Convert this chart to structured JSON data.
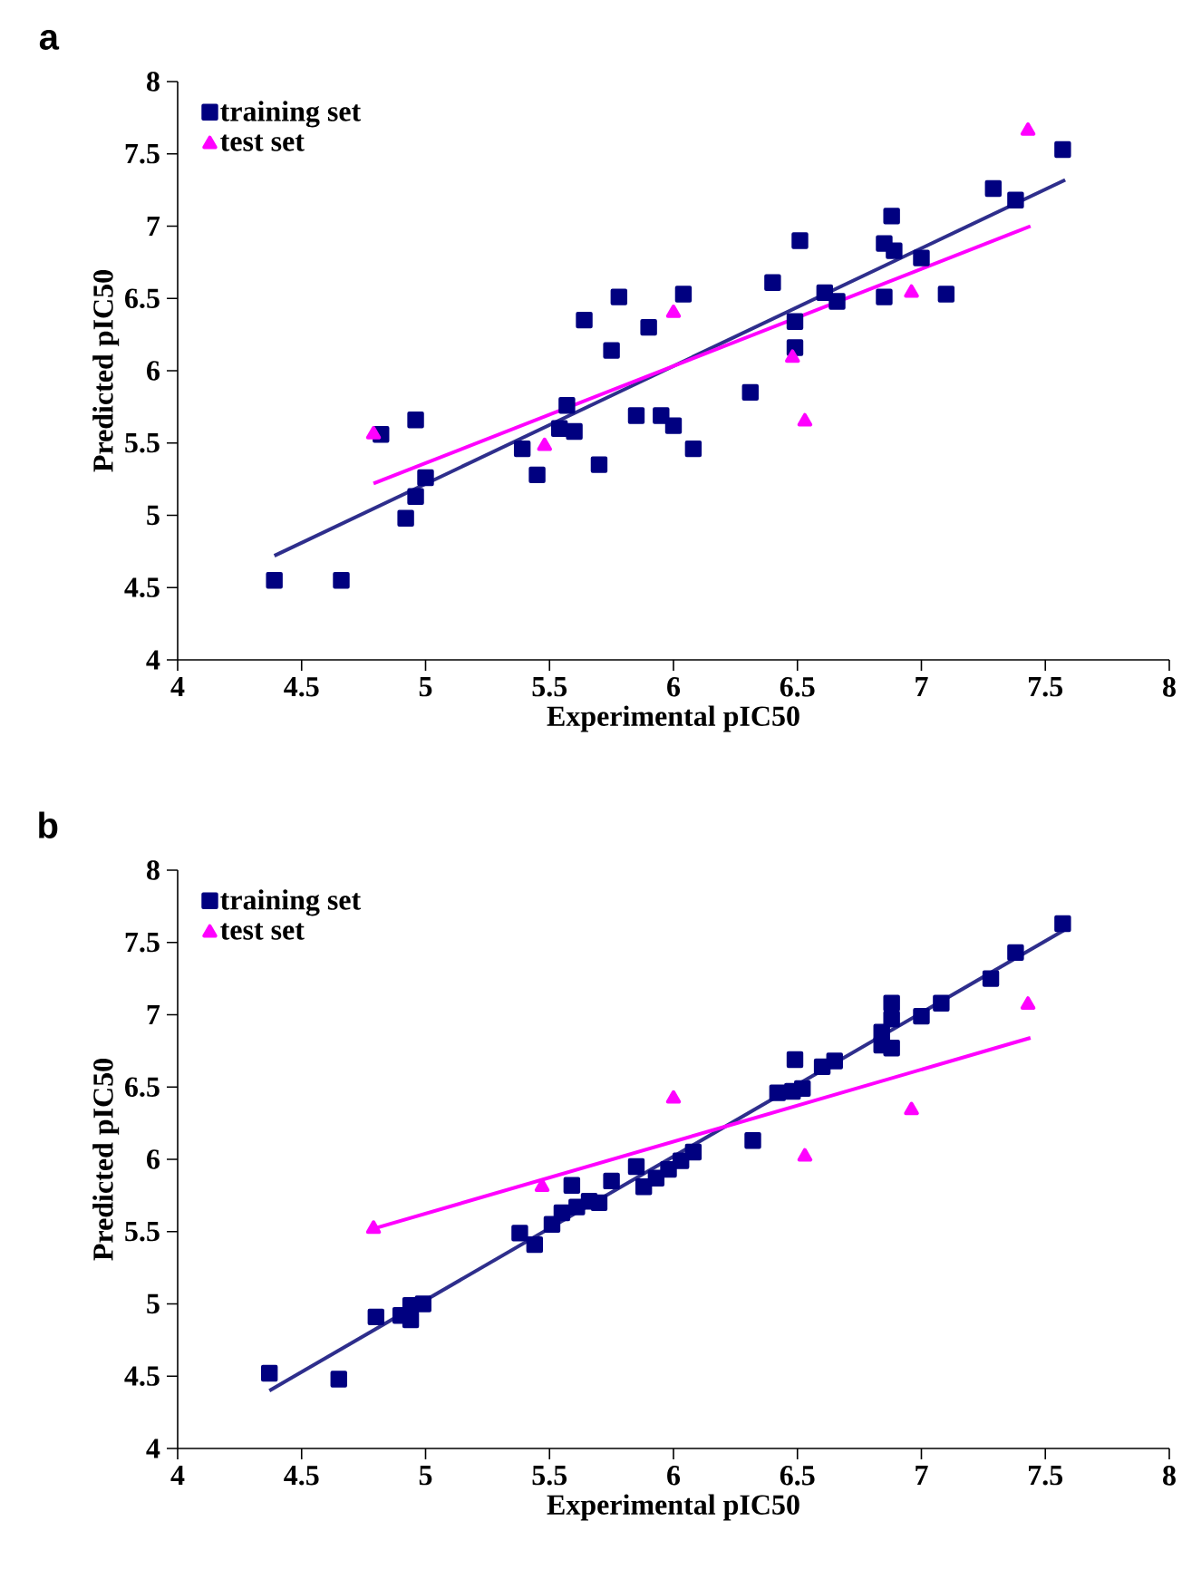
{
  "chart_data": [
    {
      "type": "scatter",
      "title": "a",
      "xlabel": "Experimental pIC50",
      "ylabel": "Predicted pIC50",
      "xlim": [
        4,
        8
      ],
      "ylim": [
        4,
        8
      ],
      "xticks": [
        4,
        4.5,
        5,
        5.5,
        6,
        6.5,
        7,
        7.5,
        8
      ],
      "yticks": [
        4,
        4.5,
        5,
        5.5,
        6,
        6.5,
        7,
        7.5,
        8
      ],
      "legend": "top left",
      "series": [
        {
          "name": "training set",
          "marker": "square",
          "color": "#000080",
          "x": [
            4.39,
            4.66,
            4.82,
            4.96,
            4.92,
            4.96,
            5.0,
            5.39,
            5.45,
            5.54,
            5.57,
            5.6,
            5.64,
            5.7,
            5.75,
            5.78,
            5.85,
            5.9,
            5.95,
            6.0,
            6.04,
            6.08,
            6.31,
            6.4,
            6.49,
            6.49,
            6.51,
            6.61,
            6.66,
            6.85,
            6.85,
            6.88,
            6.89,
            7.0,
            7.1,
            7.29,
            7.38,
            7.57
          ],
          "values": [
            4.55,
            4.55,
            5.56,
            5.66,
            4.98,
            5.13,
            5.26,
            5.46,
            5.28,
            5.6,
            5.76,
            5.58,
            6.35,
            5.35,
            6.14,
            6.51,
            5.69,
            6.3,
            5.69,
            5.62,
            6.53,
            5.46,
            5.85,
            6.61,
            6.16,
            6.34,
            6.9,
            6.54,
            6.48,
            6.51,
            6.88,
            7.07,
            6.83,
            6.78,
            6.53,
            7.26,
            7.18,
            7.53
          ]
        },
        {
          "name": "test set",
          "marker": "triangle",
          "color": "#ff00ff",
          "x": [
            4.79,
            5.48,
            6.0,
            6.48,
            6.53,
            6.96,
            7.43
          ],
          "values": [
            5.56,
            5.48,
            6.4,
            6.09,
            5.65,
            6.54,
            7.66
          ]
        },
        {
          "type": "line",
          "marker": "none",
          "color": "#2e2e8c",
          "x": [
            4.39,
            7.58
          ],
          "values": [
            4.72,
            7.32
          ]
        },
        {
          "type": "line",
          "marker": "none",
          "color": "#ff00ff",
          "x": [
            4.79,
            7.44
          ],
          "values": [
            5.22,
            7.0
          ]
        }
      ]
    },
    {
      "type": "scatter",
      "title": "b",
      "xlabel": "Experimental pIC50",
      "ylabel": "Predicted pIC50",
      "xlim": [
        4,
        8
      ],
      "ylim": [
        4,
        8
      ],
      "xticks": [
        4,
        4.5,
        5,
        5.5,
        6,
        6.5,
        7,
        7.5,
        8
      ],
      "yticks": [
        4,
        4.5,
        5,
        5.5,
        6,
        6.5,
        7,
        7.5,
        8
      ],
      "legend": "top left",
      "series": [
        {
          "name": "training set",
          "marker": "square",
          "color": "#000080",
          "x": [
            4.37,
            4.65,
            4.8,
            4.9,
            4.94,
            4.94,
            4.99,
            5.38,
            5.44,
            5.51,
            5.55,
            5.59,
            5.61,
            5.66,
            5.7,
            5.75,
            5.85,
            5.88,
            5.93,
            5.98,
            6.03,
            6.08,
            6.32,
            6.42,
            6.48,
            6.52,
            6.49,
            6.6,
            6.65,
            6.84,
            6.84,
            6.88,
            6.88,
            6.88,
            7.0,
            7.08,
            7.28,
            7.38,
            7.57
          ],
          "values": [
            4.52,
            4.48,
            4.91,
            4.92,
            4.89,
            4.99,
            5.0,
            5.49,
            5.41,
            5.55,
            5.63,
            5.82,
            5.67,
            5.71,
            5.7,
            5.85,
            5.95,
            5.81,
            5.87,
            5.93,
            5.99,
            6.05,
            6.13,
            6.46,
            6.47,
            6.49,
            6.69,
            6.64,
            6.68,
            6.88,
            6.79,
            6.77,
            7.08,
            6.97,
            6.99,
            7.08,
            7.25,
            7.43,
            7.63
          ]
        },
        {
          "name": "test set",
          "marker": "triangle",
          "color": "#ff00ff",
          "x": [
            4.79,
            5.47,
            6.0,
            6.53,
            6.96,
            7.43
          ],
          "values": [
            5.52,
            5.81,
            6.42,
            6.02,
            6.34,
            7.07
          ]
        },
        {
          "type": "line",
          "marker": "none",
          "color": "#2e2e8c",
          "x": [
            4.37,
            7.58
          ],
          "values": [
            4.4,
            7.59
          ]
        },
        {
          "type": "line",
          "marker": "none",
          "color": "#ff00ff",
          "x": [
            4.77,
            7.44
          ],
          "values": [
            5.51,
            6.84
          ]
        }
      ]
    }
  ]
}
